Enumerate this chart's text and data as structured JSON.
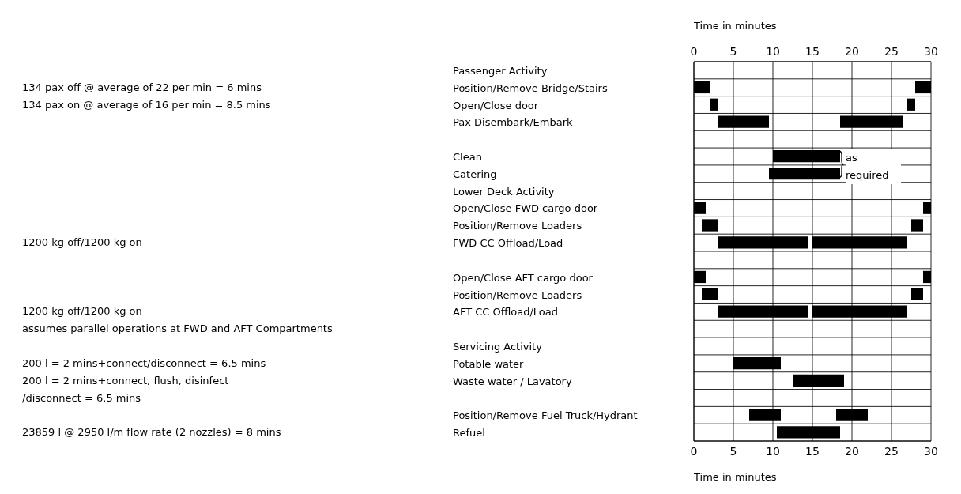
{
  "chart_data": {
    "type": "bar",
    "orientation": "horizontal",
    "xlabel": "Time in minutes",
    "x2label": "Time in minutes",
    "categories": [
      "Passenger Activity",
      "Position/Remove Bridge/Stairs",
      "Open/Close door",
      "Pax Disembark/Embark",
      null,
      "Clean",
      "Catering",
      "Lower Deck Activity",
      "Open/Close FWD cargo door",
      "Position/Remove Loaders",
      "FWD CC Offload/Load",
      null,
      "Open/Close AFT cargo door",
      "Position/Remove Loaders",
      "AFT CC Offload/Load",
      null,
      "Servicing Activity",
      "Potable water",
      "Waste water / Lavatory",
      null,
      "Position/Remove Fuel Truck/Hydrant",
      "Refuel"
    ],
    "series": [
      {
        "color": "#000000",
        "base": [
          null,
          0,
          2,
          3,
          null,
          10,
          9.5,
          null,
          0,
          1,
          3,
          null,
          0,
          1,
          3,
          null,
          null,
          5,
          12.5,
          null,
          7,
          10.5
        ],
        "values": [
          null,
          2,
          1,
          6.5,
          null,
          8.5,
          9,
          null,
          1.5,
          2,
          11.5,
          null,
          1.5,
          2,
          11.5,
          null,
          null,
          6,
          6.5,
          null,
          4,
          8
        ]
      },
      {
        "color": "#000000",
        "base": [
          null,
          28,
          27,
          18.5,
          null,
          null,
          null,
          null,
          29,
          27.5,
          15,
          null,
          29,
          27.5,
          15,
          null,
          null,
          null,
          null,
          null,
          18,
          null
        ],
        "values": [
          null,
          2,
          1,
          8,
          null,
          null,
          null,
          null,
          1,
          1.5,
          12,
          null,
          1,
          1.5,
          12,
          null,
          null,
          null,
          null,
          null,
          4,
          null
        ]
      }
    ],
    "xlim": [
      0,
      30
    ],
    "xticks": [
      0,
      5,
      10,
      15,
      20,
      25,
      30
    ],
    "x2lim": [
      0,
      30
    ],
    "x2ticks": [
      0,
      5,
      10,
      15,
      20,
      25,
      30
    ],
    "grid": true,
    "legend": false,
    "annotations": [
      "134 pax off @ average of 22 per min = 6 mins",
      "134 pax on @ average of 16 per min = 8.5 mins",
      "as required",
      "1200 kg off/1200 kg on",
      "1200 kg off/1200 kg on\nassumes parallel operations at FWD and AFT Compartments",
      "200 l = 2 mins+connect/disconnect = 6.5 mins",
      "200 l = 2 mins+connect, flush, disinfect\n/disconnect = 6.5 mins",
      "23859 l @ 2950 l/m flow rate (2 nozzles) = 8 mins"
    ]
  }
}
